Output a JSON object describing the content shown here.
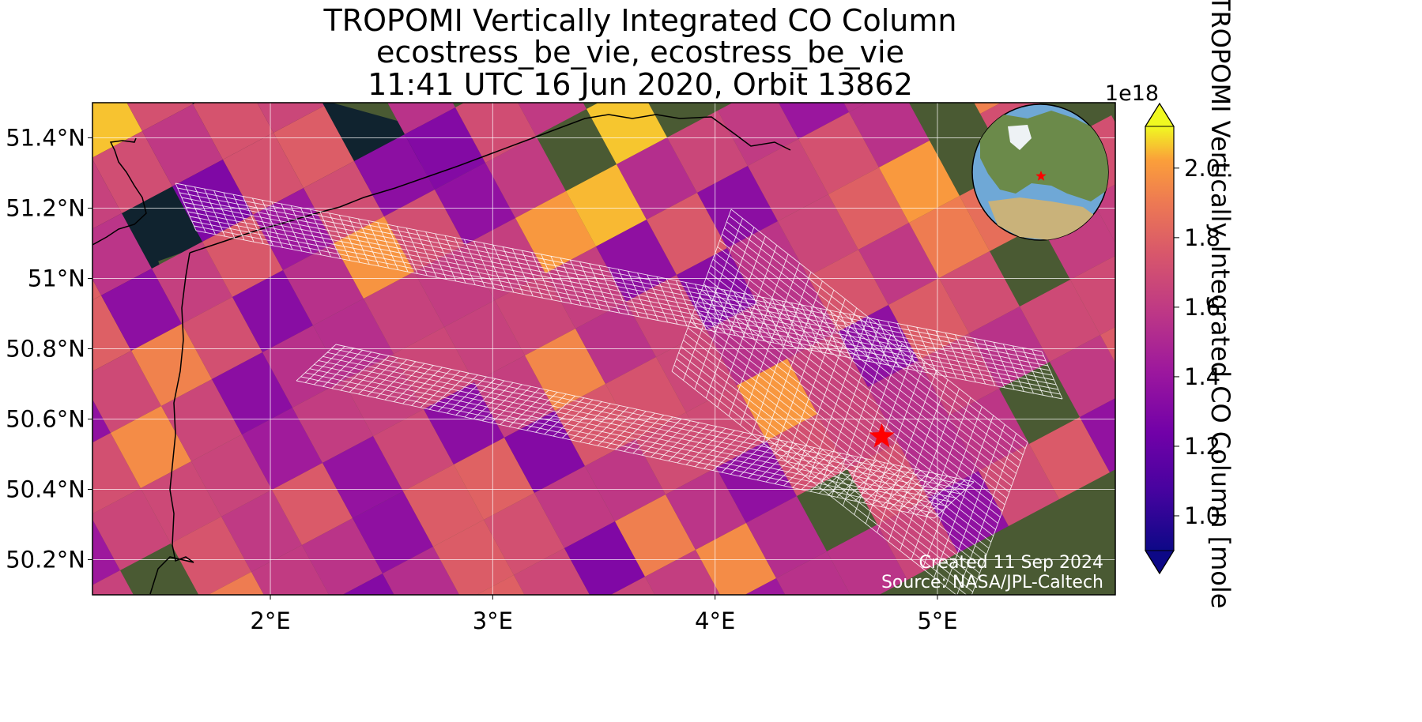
{
  "title": {
    "line1": "TROPOMI Vertically Integrated CO Column",
    "line2": "ecostress_be_vie, ecostress_be_vie",
    "line3": "11:41 UTC 16 Jun 2020, Orbit 13862"
  },
  "map": {
    "lon_range": [
      1.2,
      5.8
    ],
    "lat_range": [
      50.1,
      51.5
    ],
    "lon_ticks": [
      "2°E",
      "3°E",
      "4°E",
      "5°E"
    ],
    "lat_ticks": [
      "51.4°N",
      "51.2°N",
      "51°N",
      "50.8°N",
      "50.6°N",
      "50.4°N",
      "50.2°N"
    ],
    "gridlines": true,
    "basemap": "satellite imagery",
    "site_marker": {
      "lon": 4.75,
      "lat": 50.55,
      "symbol": "star-icon",
      "color": "#ff0000"
    },
    "inset_globe": {
      "position": "top-right",
      "marker_color": "#ff0000"
    }
  },
  "colorbar": {
    "label": "TROPOMI Vertically Integrated CO Column [mole",
    "scale_label": "1e18",
    "ticks": [
      "2.0",
      "1.8",
      "1.6",
      "1.4",
      "1.2",
      "1.0"
    ],
    "range": [
      0.9,
      2.12
    ],
    "colormap": "plasma",
    "extend": "both"
  },
  "credits": {
    "line1": "Created 11 Sep 2024",
    "line2": "Source: NASA/JPL-Caltech"
  },
  "colors": {
    "ocean": "#10232f",
    "land": "#4a5a33",
    "grid_line": "#ffffff"
  }
}
